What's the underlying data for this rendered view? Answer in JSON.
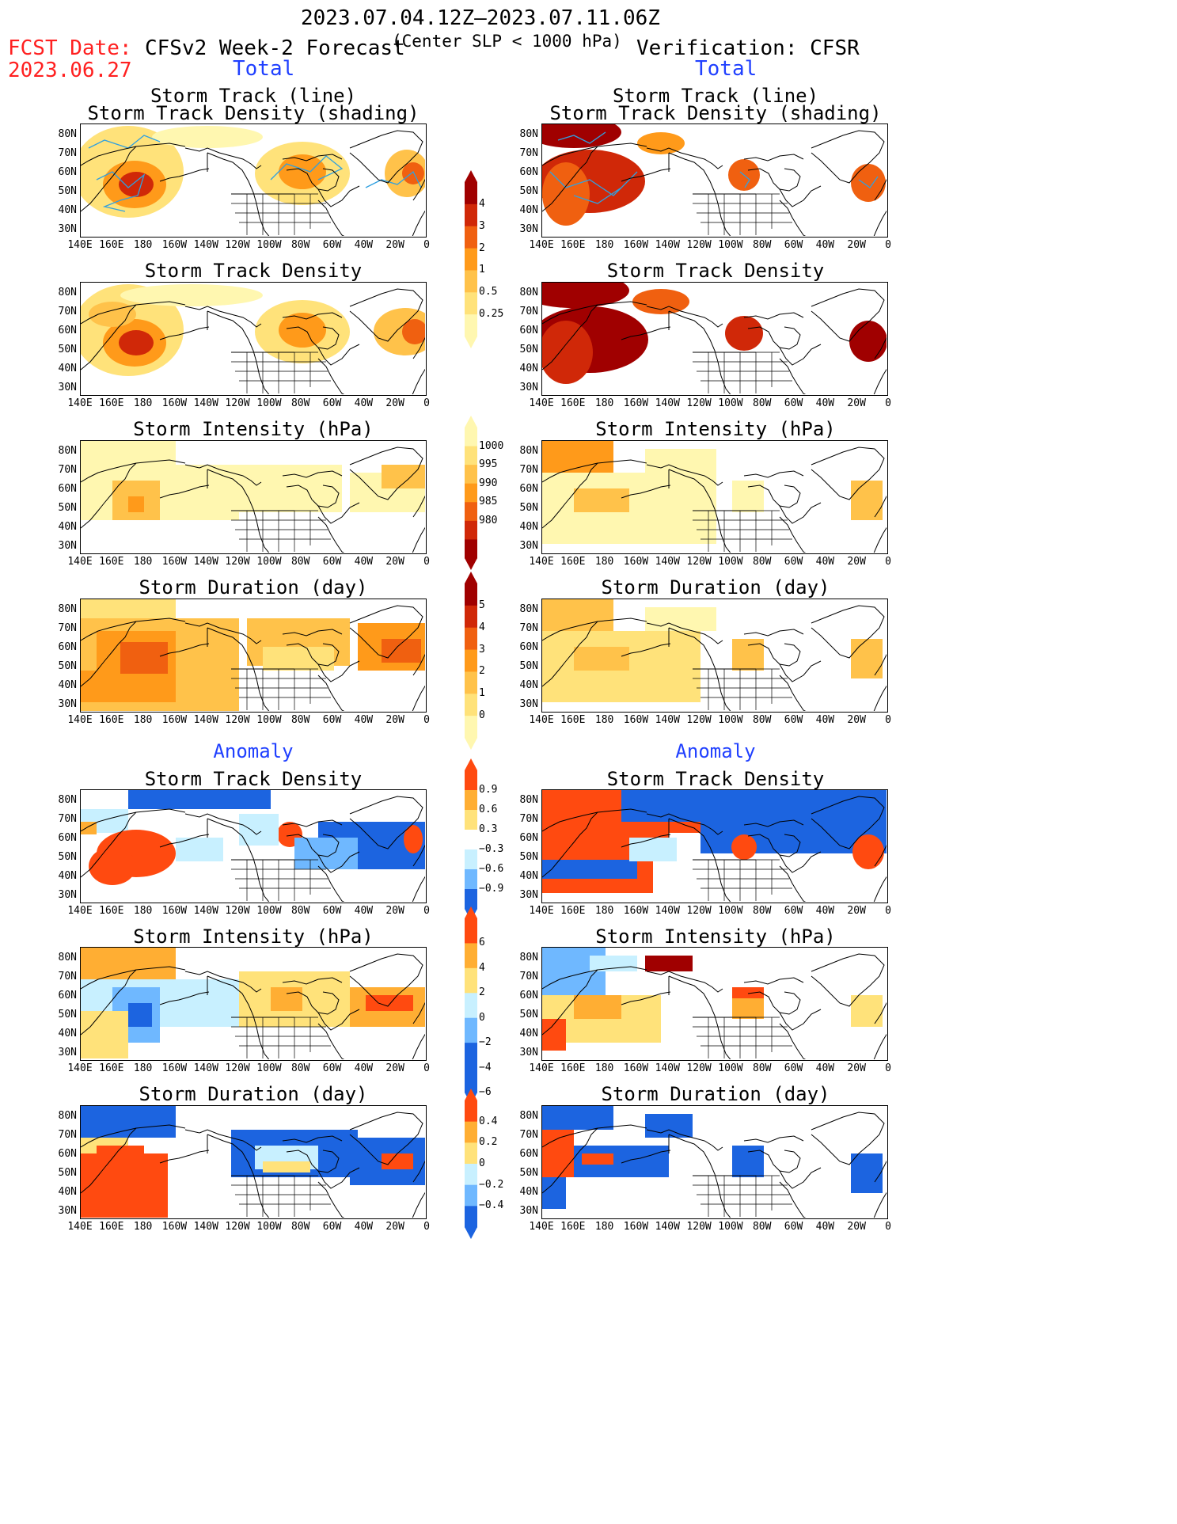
{
  "header": {
    "date_range": "2023.07.04.12Z–2023.07.11.06Z",
    "criterion": "(Center SLP < 1000 hPa)",
    "fcst_date_label": "FCST Date:",
    "fcst_date": "2023.06.27",
    "left_title": "CFSv2 Week-2 Forecast",
    "right_title": "Verification: CFSR"
  },
  "sections": {
    "total": "Total",
    "anomaly": "Anomaly"
  },
  "panel_titles": {
    "track_line": "Storm Track (line)",
    "track_density_shading": "Storm Track Density (shading)",
    "track_density": "Storm Track Density",
    "intensity": "Storm Intensity (hPa)",
    "duration": "Storm Duration (day)"
  },
  "axes": {
    "lat_labels": [
      "80N",
      "70N",
      "60N",
      "50N",
      "40N",
      "30N"
    ],
    "lon_labels": [
      "140E",
      "160E",
      "180",
      "160W",
      "140W",
      "120W",
      "100W",
      "80W",
      "60W",
      "40W",
      "20W",
      "0"
    ]
  },
  "colorbars": {
    "density_total": [
      "4",
      "3",
      "2",
      "1",
      "0.5",
      "0.25"
    ],
    "intensity_total": [
      "1000",
      "995",
      "990",
      "985",
      "980"
    ],
    "duration_total": [
      "5",
      "4",
      "3",
      "2",
      "1",
      "0"
    ],
    "density_anom": [
      "0.9",
      "0.6",
      "0.3",
      "−0.3",
      "−0.6",
      "−0.9"
    ],
    "intensity_anom": [
      "6",
      "4",
      "2",
      "0",
      "−2",
      "−4",
      "−6"
    ],
    "duration_anom": [
      "0.4",
      "0.2",
      "0",
      "−0.2",
      "−0.4"
    ]
  },
  "colors": {
    "warm": [
      "#fff7b0",
      "#ffe27a",
      "#ffc24a",
      "#ff9a1a",
      "#f06010",
      "#d02808",
      "#a00000"
    ],
    "anom_pos": [
      "#ffe27a",
      "#ffae33",
      "#ff4a10"
    ],
    "anom_neg": [
      "#c8f0ff",
      "#6fb8ff",
      "#1c64e0"
    ],
    "track_line": "#30a0e0"
  }
}
